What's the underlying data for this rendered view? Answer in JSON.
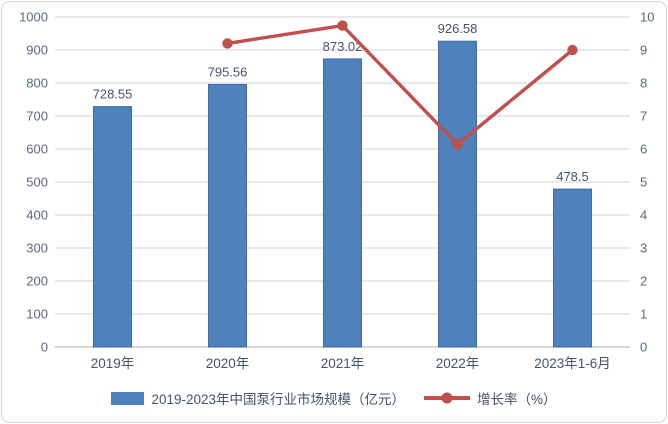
{
  "chart": {
    "legend": {
      "bars_label": "2019-2023年中国泵行业市场规模（亿元）",
      "line_label": "增长率（%）"
    },
    "colors": {
      "bar_fill": "#4F81BD",
      "bar_stroke": "#3E6CA5",
      "line": "#C0504D",
      "grid": "#DCDCDC",
      "baseline": "#BFBFBF",
      "axis_text": "#5B6B7C",
      "label_text": "#44546A"
    }
  },
  "chart_data": {
    "type": "bar",
    "categories": [
      "2019年",
      "2020年",
      "2021年",
      "2022年",
      "2023年1-6月"
    ],
    "series": [
      {
        "name": "2019-2023年中国泵行业市场规模（亿元）",
        "type": "bar",
        "axis": "left",
        "values": [
          728.55,
          795.56,
          873.02,
          926.58,
          478.5
        ],
        "data_labels": [
          "728.55",
          "795.56",
          "873.02",
          "926.58",
          "478.5"
        ]
      },
      {
        "name": "增长率（%）",
        "type": "line",
        "axis": "right",
        "values": [
          null,
          9.2,
          9.74,
          6.14,
          9.0
        ]
      }
    ],
    "title": "",
    "xlabel": "",
    "ylabel": "",
    "left_axis": {
      "min": 0,
      "max": 1000,
      "step": 100
    },
    "right_axis": {
      "min": 0,
      "max": 10,
      "step": 1
    },
    "grid": true,
    "legend_position": "bottom"
  }
}
